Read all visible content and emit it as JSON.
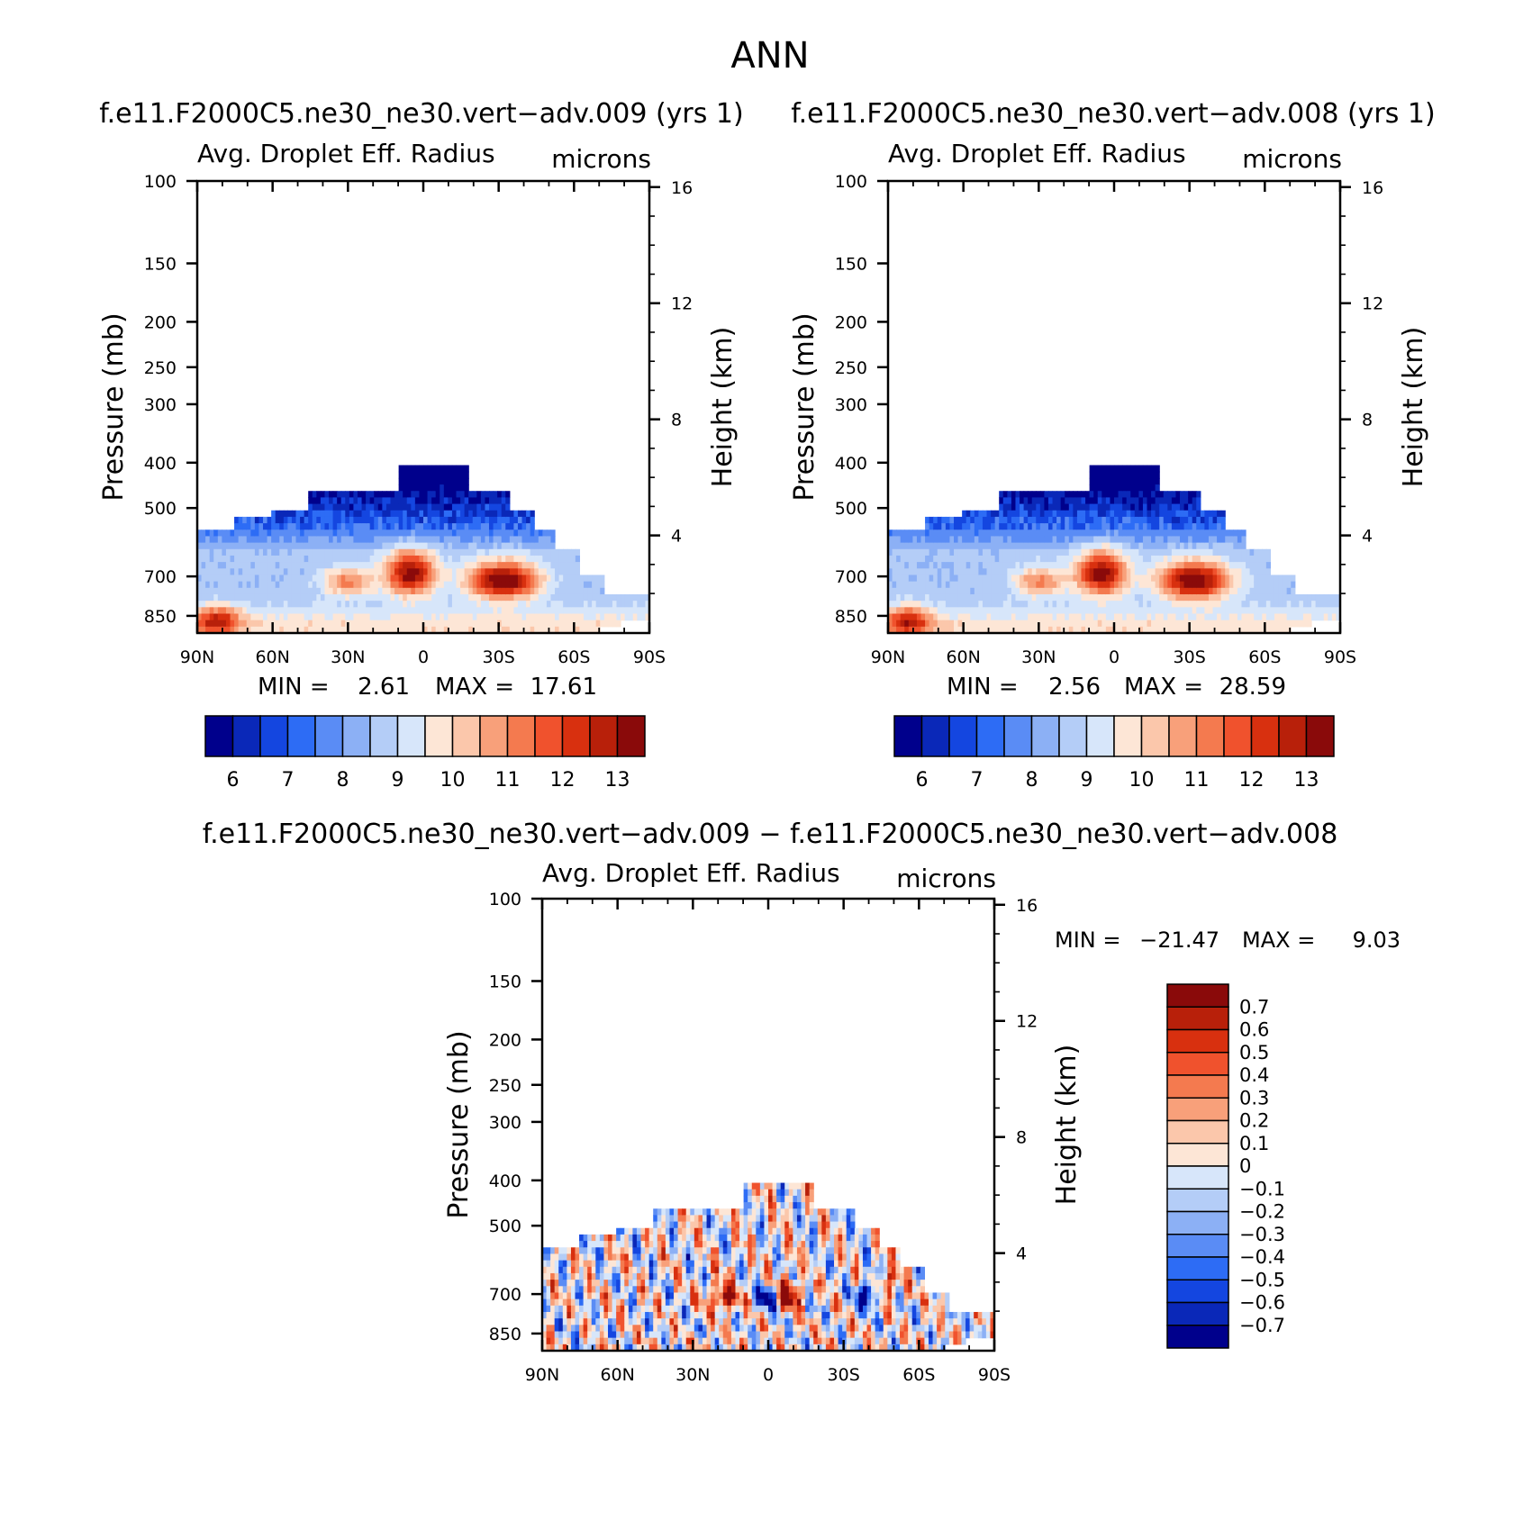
{
  "page": {
    "title": "ANN",
    "variable": "Avg. Droplet Eff. Radius",
    "units": "microns"
  },
  "chart_data": [
    {
      "type": "heatmap",
      "id": "test",
      "title": "f.e11.F2000C5.ne30_ne30.vert−adv.009 (yrs 1)",
      "subtitle_left": "Avg. Droplet Eff. Radius",
      "subtitle_right": "microns",
      "xlabel": "",
      "ylabel": "Pressure (mb)",
      "y2label": "Height (km)",
      "x_ticks": [
        "90N",
        "60N",
        "30N",
        "0",
        "30S",
        "60S",
        "90S"
      ],
      "y_ticks": [
        "100",
        "150",
        "200",
        "250",
        "300",
        "400",
        "500",
        "700",
        "850"
      ],
      "y2_ticks": [
        "16",
        "12",
        "8",
        "4"
      ],
      "min_label": "MIN =",
      "min_value": "2.61",
      "max_label": "MAX =",
      "max_value": "17.61",
      "levels": [
        "6",
        "7",
        "8",
        "9",
        "10",
        "11",
        "12",
        "13"
      ],
      "colors": [
        "#00008c",
        "#0a28b8",
        "#1446e0",
        "#2d6cf5",
        "#5a8cf5",
        "#8cb0f5",
        "#b4cdf7",
        "#d7e6fa",
        "#fde6d6",
        "#fbc7ab",
        "#f8a07a",
        "#f47a4f",
        "#f0522d",
        "#d8300f",
        "#b8200a",
        "#8a0a0a"
      ]
    },
    {
      "type": "heatmap",
      "id": "control",
      "title": "f.e11.F2000C5.ne30_ne30.vert−adv.008 (yrs 1)",
      "subtitle_left": "Avg. Droplet Eff. Radius",
      "subtitle_right": "microns",
      "xlabel": "",
      "ylabel": "Pressure (mb)",
      "y2label": "Height (km)",
      "x_ticks": [
        "90N",
        "60N",
        "30N",
        "0",
        "30S",
        "60S",
        "90S"
      ],
      "y_ticks": [
        "100",
        "150",
        "200",
        "250",
        "300",
        "400",
        "500",
        "700",
        "850"
      ],
      "y2_ticks": [
        "16",
        "12",
        "8",
        "4"
      ],
      "min_label": "MIN =",
      "min_value": "2.56",
      "max_label": "MAX =",
      "max_value": "28.59",
      "levels": [
        "6",
        "7",
        "8",
        "9",
        "10",
        "11",
        "12",
        "13"
      ],
      "colors": [
        "#00008c",
        "#0a28b8",
        "#1446e0",
        "#2d6cf5",
        "#5a8cf5",
        "#8cb0f5",
        "#b4cdf7",
        "#d7e6fa",
        "#fde6d6",
        "#fbc7ab",
        "#f8a07a",
        "#f47a4f",
        "#f0522d",
        "#d8300f",
        "#b8200a",
        "#8a0a0a"
      ]
    },
    {
      "type": "heatmap",
      "id": "difference",
      "title": "f.e11.F2000C5.ne30_ne30.vert−adv.009 − f.e11.F2000C5.ne30_ne30.vert−adv.008",
      "subtitle_left": "Avg. Droplet Eff. Radius",
      "subtitle_right": "microns",
      "xlabel": "",
      "ylabel": "Pressure (mb)",
      "y2label": "Height (km)",
      "x_ticks": [
        "90N",
        "60N",
        "30N",
        "0",
        "30S",
        "60S",
        "90S"
      ],
      "y_ticks": [
        "100",
        "150",
        "200",
        "250",
        "300",
        "400",
        "500",
        "700",
        "850"
      ],
      "y2_ticks": [
        "16",
        "12",
        "8",
        "4"
      ],
      "min_label": "MIN =",
      "min_value": "−21.47",
      "max_label": "MAX =",
      "max_value": "9.03",
      "levels": [
        "0.7",
        "0.6",
        "0.5",
        "0.4",
        "0.3",
        "0.2",
        "0.1",
        "0",
        "−0.1",
        "−0.2",
        "−0.3",
        "−0.4",
        "−0.5",
        "−0.6",
        "−0.7"
      ],
      "colors": [
        "#8a0a0a",
        "#b8200a",
        "#d8300f",
        "#f0522d",
        "#f47a4f",
        "#f8a07a",
        "#fbc7ab",
        "#fde6d6",
        "#d7e6fa",
        "#b4cdf7",
        "#8cb0f5",
        "#5a8cf5",
        "#2d6cf5",
        "#1446e0",
        "#0a28b8",
        "#00008c"
      ]
    }
  ]
}
